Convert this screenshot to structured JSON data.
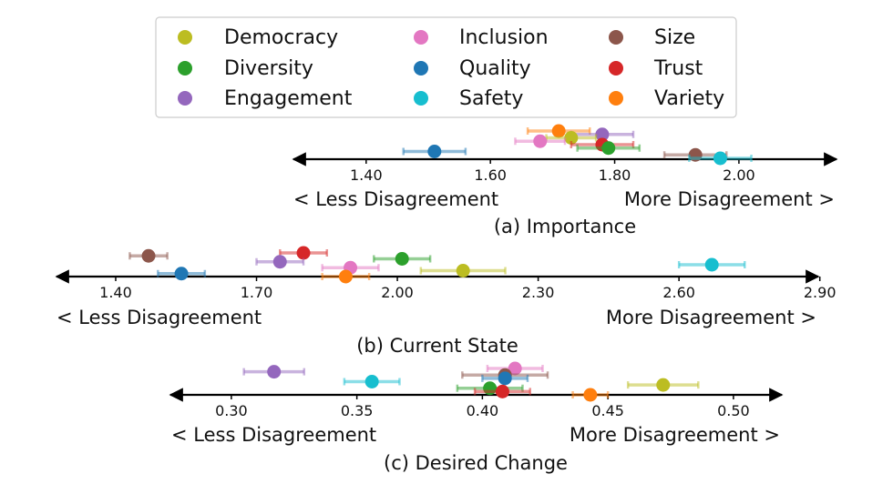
{
  "legend": [
    {
      "name": "Democracy",
      "color": "#bcbd22"
    },
    {
      "name": "Diversity",
      "color": "#2ca02c"
    },
    {
      "name": "Engagement",
      "color": "#9467bd"
    },
    {
      "name": "Inclusion",
      "color": "#e377c2"
    },
    {
      "name": "Quality",
      "color": "#1f77b4"
    },
    {
      "name": "Safety",
      "color": "#17becf"
    },
    {
      "name": "Size",
      "color": "#8c564b"
    },
    {
      "name": "Trust",
      "color": "#d62728"
    },
    {
      "name": "Variety",
      "color": "#ff7f0e"
    }
  ],
  "chart_data": [
    {
      "type": "scatter",
      "title": "(a) Importance",
      "left_label": "< Less Disagreement",
      "right_label": "More Disagreement >",
      "xlim": [
        1.28,
        2.16
      ],
      "ticks": [
        1.4,
        1.6,
        1.8,
        2.0
      ],
      "tick_labels": [
        "1.40",
        "1.60",
        "1.80",
        "2.00"
      ],
      "points": [
        {
          "category": "Variety",
          "value": 1.71,
          "err": 0.05
        },
        {
          "category": "Engagement",
          "value": 1.78,
          "err": 0.05
        },
        {
          "category": "Democracy",
          "value": 1.73,
          "err": 0.04
        },
        {
          "category": "Inclusion",
          "value": 1.68,
          "err": 0.04
        },
        {
          "category": "Trust",
          "value": 1.78,
          "err": 0.05
        },
        {
          "category": "Diversity",
          "value": 1.79,
          "err": 0.05
        },
        {
          "category": "Quality",
          "value": 1.51,
          "err": 0.05
        },
        {
          "category": "Size",
          "value": 1.93,
          "err": 0.05
        },
        {
          "category": "Safety",
          "value": 1.97,
          "err": 0.05
        }
      ]
    },
    {
      "type": "scatter",
      "title": "(b) Current State",
      "left_label": "< Less Disagreement",
      "right_label": "More Disagreement >",
      "xlim": [
        1.27,
        2.92
      ],
      "ticks": [
        1.4,
        1.7,
        2.0,
        2.3,
        2.6,
        2.9
      ],
      "tick_labels": [
        "1.40",
        "1.70",
        "2.00",
        "2.30",
        "2.60",
        "2.90"
      ],
      "points": [
        {
          "category": "Trust",
          "value": 1.8,
          "err": 0.05
        },
        {
          "category": "Size",
          "value": 1.47,
          "err": 0.04
        },
        {
          "category": "Diversity",
          "value": 2.01,
          "err": 0.06
        },
        {
          "category": "Engagement",
          "value": 1.75,
          "err": 0.05
        },
        {
          "category": "Safety",
          "value": 2.67,
          "err": 0.07
        },
        {
          "category": "Inclusion",
          "value": 1.9,
          "err": 0.06
        },
        {
          "category": "Democracy",
          "value": 2.14,
          "err": 0.09
        },
        {
          "category": "Quality",
          "value": 1.54,
          "err": 0.05
        },
        {
          "category": "Variety",
          "value": 1.89,
          "err": 0.05
        }
      ]
    },
    {
      "type": "scatter",
      "title": "(c) Desired Change",
      "left_label": "< Less Disagreement",
      "right_label": "More Disagreement >",
      "xlim": [
        0.275,
        0.52
      ],
      "ticks": [
        0.3,
        0.35,
        0.4,
        0.45,
        0.5
      ],
      "tick_labels": [
        "0.30",
        "0.35",
        "0.40",
        "0.45",
        "0.50"
      ],
      "points": [
        {
          "category": "Inclusion",
          "value": 0.413,
          "err": 0.011
        },
        {
          "category": "Engagement",
          "value": 0.317,
          "err": 0.012
        },
        {
          "category": "Size",
          "value": 0.409,
          "err": 0.017
        },
        {
          "category": "Quality",
          "value": 0.409,
          "err": 0.009
        },
        {
          "category": "Safety",
          "value": 0.356,
          "err": 0.011
        },
        {
          "category": "Democracy",
          "value": 0.472,
          "err": 0.014
        },
        {
          "category": "Diversity",
          "value": 0.403,
          "err": 0.013
        },
        {
          "category": "Trust",
          "value": 0.408,
          "err": 0.011
        },
        {
          "category": "Variety",
          "value": 0.443,
          "err": 0.007
        }
      ]
    }
  ]
}
